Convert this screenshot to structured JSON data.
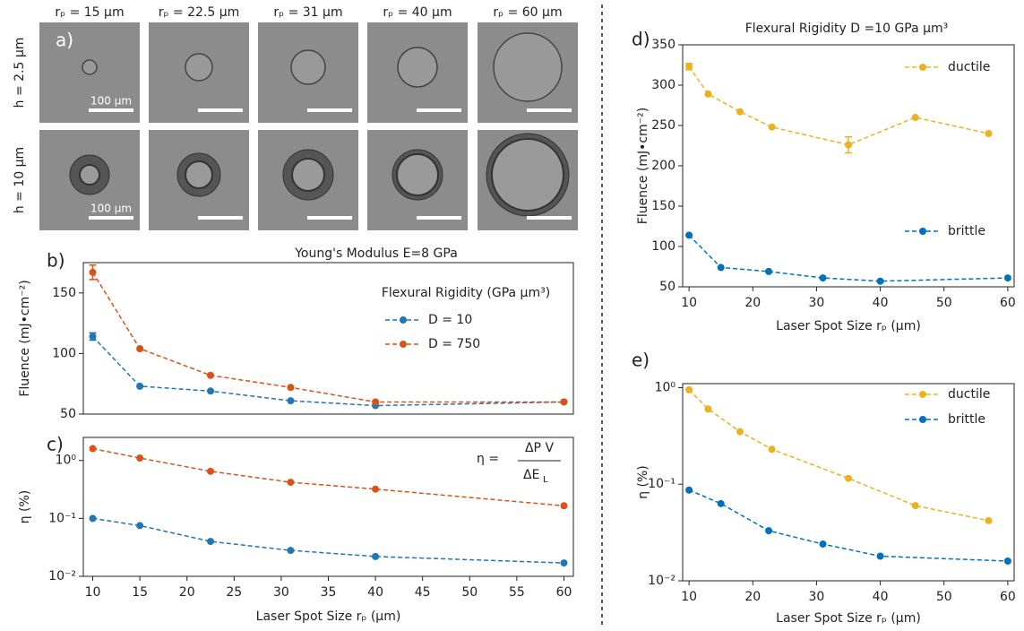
{
  "micrographs": {
    "label": "a)",
    "columns": [
      "rₚ = 15 μm",
      "rₚ = 22.5 μm",
      "rₚ = 31 μm",
      "rₚ = 40 μm",
      "rₚ = 60 μm"
    ],
    "rows": [
      "h = 2.5 μm",
      "h = 10 μm"
    ],
    "scale_bar_labels": [
      "100 μm",
      "100 μm"
    ]
  },
  "chart_data": [
    {
      "type": "line",
      "label": "b)",
      "title": "Young's Modulus E=8 GPa",
      "y_label": "Fluence  (mJ•cm⁻²)",
      "legend_title": "Flexural Rigidity (GPa μm³)",
      "legend": "upper right",
      "x": [
        10,
        15,
        22.5,
        31,
        40,
        60
      ],
      "xlim": [
        9,
        61
      ],
      "ylim": [
        50,
        175
      ],
      "yticks": [
        50,
        100,
        150
      ],
      "series": [
        {
          "name": "D  = 10",
          "color": "#1f77b4",
          "values": [
            114,
            73,
            69,
            61,
            57,
            60
          ],
          "errors": [
            3,
            0,
            0,
            0,
            0,
            0
          ]
        },
        {
          "name": "D  = 750",
          "color": "#d95319",
          "values": [
            167,
            104,
            82,
            72,
            60,
            60
          ],
          "errors": [
            6,
            0,
            0,
            0,
            0,
            0
          ]
        }
      ]
    },
    {
      "type": "line",
      "label": "c)",
      "y_label": "η (%)",
      "x_label": "Laser Spot Size rₚ (μm)",
      "log_y": true,
      "formula": {
        "lhs": "η =",
        "numerator": "ΔP V",
        "denominator": "ΔE",
        "denominator_sub": "L"
      },
      "x": [
        10,
        15,
        22.5,
        31,
        40,
        60
      ],
      "xlim": [
        9,
        61
      ],
      "xticks": [
        10,
        15,
        20,
        25,
        30,
        35,
        40,
        45,
        50,
        55,
        60
      ],
      "ylim": [
        0.01,
        2.5
      ],
      "yticks": [
        {
          "value": 0.01,
          "label": "10⁻²"
        },
        {
          "value": 0.1,
          "label": "10⁻¹"
        },
        {
          "value": 1,
          "label": "10⁰"
        }
      ],
      "series": [
        {
          "color": "#1f77b4",
          "values": [
            0.1,
            0.075,
            0.04,
            0.028,
            0.022,
            0.017
          ]
        },
        {
          "color": "#d95319",
          "values": [
            1.6,
            1.1,
            0.65,
            0.42,
            0.32,
            0.165
          ]
        }
      ]
    },
    {
      "type": "line",
      "label": "d)",
      "title": "Flexural Rigidity D =10 GPa μm³",
      "y_label": "Fluence  (mJ•cm⁻²)",
      "x_label": "Laser Spot Size rₚ (μm)",
      "legend": "right",
      "xlim": [
        9,
        61
      ],
      "xticks": [
        10,
        20,
        30,
        40,
        50,
        60
      ],
      "ylim": [
        50,
        350
      ],
      "yticks": [
        50,
        100,
        150,
        200,
        250,
        300,
        350
      ],
      "series": [
        {
          "name": "ductile",
          "color": "#edb120",
          "x": [
            10,
            13,
            18,
            23,
            35,
            45.5,
            57
          ],
          "values": [
            323,
            289,
            267,
            248,
            226,
            260,
            240
          ],
          "errors": [
            4,
            0,
            0,
            0,
            10,
            0,
            0
          ]
        },
        {
          "name": "brittle",
          "color": "#0072bd",
          "x": [
            10,
            15,
            22.5,
            31,
            40,
            60
          ],
          "values": [
            114,
            74,
            69,
            61,
            57,
            61
          ]
        }
      ]
    },
    {
      "type": "line",
      "label": "e)",
      "y_label": "η (%)",
      "x_label": "Laser Spot Size rₚ (μm)",
      "log_y": true,
      "legend": "upper right",
      "xlim": [
        9,
        61
      ],
      "xticks": [
        10,
        20,
        30,
        40,
        50,
        60
      ],
      "ylim": [
        0.01,
        1.1
      ],
      "yticks": [
        {
          "value": 0.01,
          "label": "10⁻²"
        },
        {
          "value": 0.1,
          "label": "10⁻¹"
        },
        {
          "value": 1,
          "label": "10⁰"
        }
      ],
      "series": [
        {
          "name": "ductile",
          "color": "#edb120",
          "x": [
            10,
            13,
            18,
            23,
            35,
            45.5,
            57
          ],
          "values": [
            0.95,
            0.6,
            0.35,
            0.23,
            0.115,
            0.06,
            0.042
          ]
        },
        {
          "name": "brittle",
          "color": "#0072bd",
          "x": [
            10,
            15,
            22.5,
            31,
            40,
            60
          ],
          "values": [
            0.087,
            0.063,
            0.033,
            0.024,
            0.018,
            0.016
          ]
        }
      ]
    }
  ]
}
